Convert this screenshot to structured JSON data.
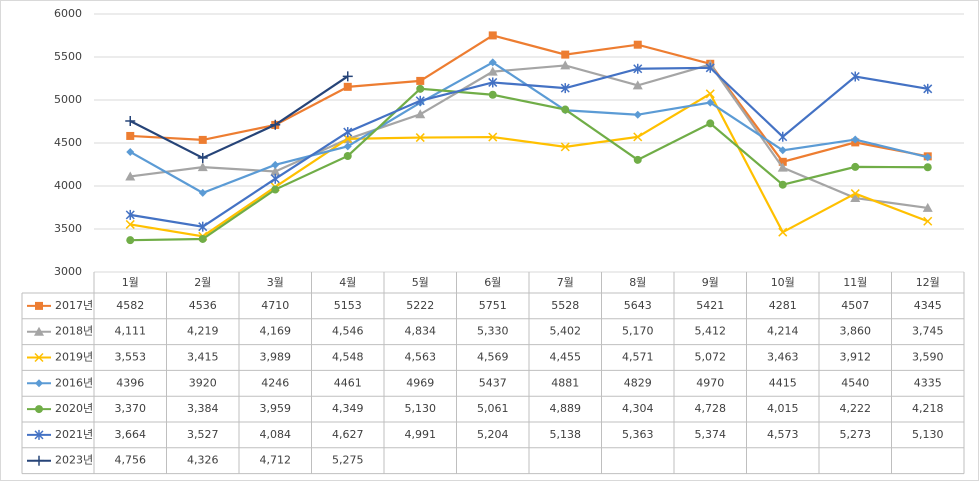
{
  "chart_data": {
    "type": "line",
    "categories": [
      "1월",
      "2월",
      "3월",
      "4월",
      "5월",
      "6월",
      "7월",
      "8월",
      "9월",
      "10월",
      "11월",
      "12월"
    ],
    "ylim": [
      3000,
      6000
    ],
    "yticks": [
      3000,
      3500,
      4000,
      4500,
      5000,
      5500,
      6000
    ],
    "grid": true,
    "series": [
      {
        "name": "2017년",
        "color": "#ED7D31",
        "marker": "square",
        "values": [
          4582,
          4536,
          4710,
          5153,
          5222,
          5751,
          5528,
          5643,
          5421,
          4281,
          4507,
          4345
        ]
      },
      {
        "name": "2018년",
        "color": "#A5A5A5",
        "marker": "triangle",
        "values": [
          4111,
          4219,
          4169,
          4546,
          4834,
          5330,
          5402,
          5170,
          5412,
          4214,
          3860,
          3745
        ],
        "value_labels": [
          "4,111",
          "4,219",
          "4,169",
          "4,546",
          "4,834",
          "5,330",
          "5,402",
          "5,170",
          "5,412",
          "4,214",
          "3,860",
          "3,745"
        ]
      },
      {
        "name": "2019년",
        "color": "#FFC000",
        "marker": "x",
        "values": [
          3553,
          3415,
          3989,
          4548,
          4563,
          4569,
          4455,
          4571,
          5072,
          3463,
          3912,
          3590
        ],
        "value_labels": [
          "3,553",
          "3,415",
          "3,989",
          "4,548",
          "4,563",
          "4,569",
          "4,455",
          "4,571",
          "5,072",
          "3,463",
          "3,912",
          "3,590"
        ]
      },
      {
        "name": "2016년",
        "color": "#5B9BD5",
        "marker": "diamond",
        "values": [
          4396,
          3920,
          4246,
          4461,
          4969,
          5437,
          4881,
          4829,
          4970,
          4415,
          4540,
          4335
        ]
      },
      {
        "name": "2020년",
        "color": "#70AD47",
        "marker": "circle",
        "values": [
          3370,
          3384,
          3959,
          4349,
          5130,
          5061,
          4889,
          4304,
          4728,
          4015,
          4222,
          4218
        ],
        "value_labels": [
          "3,370",
          "3,384",
          "3,959",
          "4,349",
          "5,130",
          "5,061",
          "4,889",
          "4,304",
          "4,728",
          "4,015",
          "4,222",
          "4,218"
        ]
      },
      {
        "name": "2021년",
        "color": "#4472C4",
        "marker": "asterisk",
        "values": [
          3664,
          3527,
          4084,
          4627,
          4991,
          5204,
          5138,
          5363,
          5374,
          4573,
          5273,
          5130
        ],
        "value_labels": [
          "3,664",
          "3,527",
          "4,084",
          "4,627",
          "4,991",
          "5,204",
          "5,138",
          "5,363",
          "5,374",
          "4,573",
          "5,273",
          "5,130"
        ]
      },
      {
        "name": "2023년",
        "color": "#264478",
        "marker": "plus",
        "values": [
          4756,
          4326,
          4712,
          5275,
          null,
          null,
          null,
          null,
          null,
          null,
          null,
          null
        ],
        "value_labels": [
          "4,756",
          "4,326",
          "4,712",
          "5,275",
          null,
          null,
          null,
          null,
          null,
          null,
          null,
          null
        ]
      }
    ]
  }
}
